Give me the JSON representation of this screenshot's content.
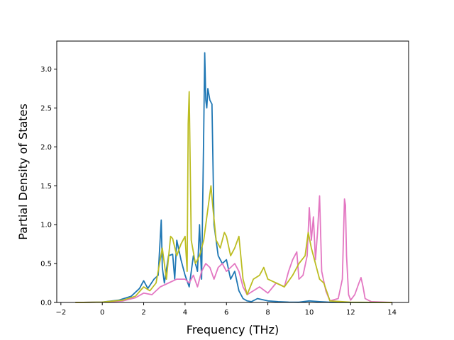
{
  "chart_data": {
    "type": "line",
    "title": "",
    "xlabel": "Frequency (THz)",
    "ylabel": "Partial Density of States",
    "xlim": [
      -2.2,
      14.8
    ],
    "ylim": [
      0,
      3.36
    ],
    "xticks": [
      -2,
      0,
      2,
      4,
      6,
      8,
      10,
      12,
      14
    ],
    "xtick_labels": [
      "−2",
      "0",
      "2",
      "4",
      "6",
      "8",
      "10",
      "12",
      "14"
    ],
    "yticks": [
      0,
      0.5,
      1.0,
      1.5,
      2.0,
      2.5,
      3.0
    ],
    "ytick_labels": [
      "0.0",
      "0.5",
      "1.0",
      "1.5",
      "2.0",
      "2.5",
      "3.0"
    ],
    "grid": false,
    "legend": "none",
    "series": [
      {
        "color": "#1f77b4",
        "x": [
          -1.3,
          0.0,
          0.8,
          1.4,
          1.8,
          2.0,
          2.2,
          2.5,
          2.7,
          2.85,
          2.9,
          3.0,
          3.2,
          3.4,
          3.5,
          3.6,
          3.8,
          4.0,
          4.2,
          4.4,
          4.6,
          4.7,
          4.8,
          4.9,
          4.95,
          5.0,
          5.05,
          5.1,
          5.2,
          5.3,
          5.4,
          5.6,
          5.8,
          6.0,
          6.2,
          6.4,
          6.6,
          6.8,
          7.0,
          7.2,
          7.5,
          8.0,
          8.5,
          9.0,
          9.5,
          10.0,
          10.5,
          11.0,
          12.0,
          14.0
        ],
        "y": [
          0,
          0.005,
          0.03,
          0.08,
          0.18,
          0.28,
          0.18,
          0.3,
          0.35,
          1.06,
          0.45,
          0.25,
          0.6,
          0.62,
          0.3,
          0.8,
          0.55,
          0.35,
          0.2,
          0.6,
          0.4,
          1.0,
          0.3,
          2.2,
          3.21,
          2.6,
          2.5,
          2.75,
          2.6,
          2.55,
          1.0,
          0.6,
          0.5,
          0.55,
          0.3,
          0.4,
          0.15,
          0.05,
          0.02,
          0.01,
          0.05,
          0.02,
          0.01,
          0.005,
          0.003,
          0.02,
          0.01,
          0.003,
          0.001,
          0
        ]
      },
      {
        "color": "#e377c2",
        "x": [
          -1.3,
          0.0,
          1.0,
          1.6,
          2.0,
          2.4,
          2.8,
          3.2,
          3.6,
          4.0,
          4.2,
          4.4,
          4.6,
          4.8,
          5.0,
          5.2,
          5.4,
          5.6,
          5.8,
          6.0,
          6.2,
          6.4,
          6.6,
          6.8,
          7.0,
          7.3,
          7.6,
          8.0,
          8.4,
          8.8,
          9.0,
          9.2,
          9.4,
          9.5,
          9.7,
          9.9,
          10.0,
          10.1,
          10.2,
          10.3,
          10.4,
          10.5,
          10.6,
          10.8,
          11.0,
          11.4,
          11.6,
          11.7,
          11.75,
          11.8,
          11.9,
          12.0,
          12.2,
          12.4,
          12.5,
          12.6,
          12.7,
          13.0,
          14.0
        ],
        "y": [
          0,
          0.004,
          0.02,
          0.06,
          0.12,
          0.1,
          0.2,
          0.25,
          0.3,
          0.3,
          0.25,
          0.35,
          0.2,
          0.4,
          0.5,
          0.45,
          0.3,
          0.45,
          0.5,
          0.4,
          0.45,
          0.5,
          0.4,
          0.2,
          0.1,
          0.15,
          0.2,
          0.12,
          0.25,
          0.2,
          0.4,
          0.55,
          0.65,
          0.3,
          0.35,
          0.6,
          1.22,
          0.8,
          1.1,
          0.55,
          0.9,
          1.37,
          0.4,
          0.15,
          0.02,
          0.05,
          0.3,
          1.33,
          1.25,
          0.6,
          0.1,
          0.03,
          0.1,
          0.25,
          0.32,
          0.2,
          0.05,
          0.01,
          0
        ]
      },
      {
        "color": "#bcbd22",
        "x": [
          -1.3,
          0.0,
          1.0,
          1.6,
          2.0,
          2.3,
          2.6,
          2.9,
          3.1,
          3.3,
          3.4,
          3.6,
          3.8,
          4.0,
          4.1,
          4.15,
          4.2,
          4.3,
          4.5,
          4.7,
          4.9,
          5.1,
          5.25,
          5.35,
          5.5,
          5.7,
          5.9,
          6.0,
          6.2,
          6.4,
          6.6,
          6.8,
          7.0,
          7.3,
          7.6,
          7.8,
          8.0,
          8.4,
          8.8,
          9.2,
          9.5,
          9.8,
          9.95,
          10.1,
          10.3,
          10.5,
          10.7,
          10.9,
          11.0,
          12.0,
          14.0
        ],
        "y": [
          0,
          0.005,
          0.03,
          0.08,
          0.2,
          0.15,
          0.25,
          0.7,
          0.3,
          0.85,
          0.82,
          0.6,
          0.75,
          0.85,
          0.4,
          2.3,
          2.71,
          0.8,
          0.5,
          0.6,
          0.8,
          1.2,
          1.5,
          1.2,
          0.8,
          0.7,
          0.9,
          0.85,
          0.6,
          0.7,
          0.85,
          0.3,
          0.1,
          0.3,
          0.35,
          0.45,
          0.3,
          0.25,
          0.2,
          0.35,
          0.5,
          0.6,
          0.9,
          0.7,
          0.5,
          0.3,
          0.25,
          0.1,
          0.02,
          0.003,
          0
        ]
      }
    ]
  }
}
